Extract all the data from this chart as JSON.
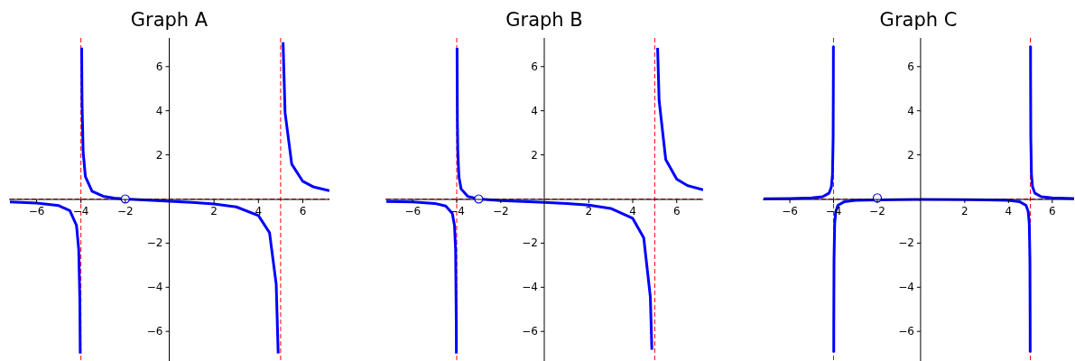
{
  "chart_data": [
    {
      "type": "line",
      "title": "Graph A",
      "xlim": [
        -7.2,
        7.2
      ],
      "ylim": [
        -7.3,
        7.3
      ],
      "xticks": [
        -6,
        -4,
        -2,
        2,
        4,
        6
      ],
      "yticks": [
        -6,
        -4,
        -2,
        2,
        4,
        6
      ],
      "ref_lines": [
        {
          "axis": "x",
          "value": -4,
          "color": "#ff0000",
          "line_style": "dashed"
        },
        {
          "axis": "x",
          "value": 5,
          "color": "#ff0000",
          "line_style": "dashed"
        },
        {
          "axis": "y",
          "value": 0,
          "color": "#ff0000",
          "line_style": "dashed"
        }
      ],
      "series": [
        {
          "x": [
            -7.2,
            -6,
            -5,
            -4.5,
            -4.2,
            -4.1,
            -4.05,
            -4.032,
            -4,
            -3.968,
            -3.95,
            -3.9,
            -3.8,
            -3.5,
            -3,
            -2.5,
            -2,
            -1,
            0,
            1,
            2,
            3,
            4,
            4.5,
            4.8,
            4.89,
            5,
            5.11,
            5.2,
            5.5,
            6,
            6.5,
            7.2
          ],
          "values": [
            -0.133,
            -0.182,
            -0.3,
            -0.526,
            -1.196,
            -2.28,
            -4.53,
            -7.0,
            null,
            6.86,
            4.36,
            2.13,
            1.02,
            0.353,
            0.125,
            0.044,
            0,
            -0.056,
            -0.1,
            -0.15,
            -0.222,
            -0.357,
            -0.75,
            -1.53,
            -3.86,
            -7.0,
            null,
            7.1,
            3.91,
            1.58,
            0.8,
            0.54,
            0.373
          ],
          "color": "#0000ff",
          "marker": "none"
        },
        {
          "type": "scatter",
          "x": [
            -2
          ],
          "values": [
            0
          ],
          "color": "#0000ff",
          "marker": "circle"
        }
      ]
    },
    {
      "type": "line",
      "title": "Graph B",
      "xlim": [
        -7.2,
        7.2
      ],
      "ylim": [
        -7.3,
        7.3
      ],
      "xticks": [
        -6,
        -4,
        -2,
        2,
        4,
        6
      ],
      "yticks": [
        -6,
        -4,
        -2,
        2,
        4,
        6
      ],
      "ref_lines": [
        {
          "axis": "x",
          "value": -4,
          "color": "#ff0000",
          "line_style": "dashed"
        },
        {
          "axis": "x",
          "value": 5,
          "color": "#ff0000",
          "line_style": "dashed"
        },
        {
          "axis": "y",
          "value": 0,
          "color": "#ff0000",
          "line_style": "dashed"
        }
      ],
      "series": [
        {
          "x": [
            -7.2,
            -6,
            -5,
            -4.5,
            -4.2,
            -4.1,
            -4.05,
            -4.02,
            -4.016,
            -4,
            -3.984,
            -3.97,
            -3.95,
            -3.9,
            -3.8,
            -3.5,
            -3,
            -2,
            -1,
            0,
            1,
            2,
            3,
            4,
            4.5,
            4.8,
            4.87,
            5,
            5.13,
            5.2,
            5.5,
            6,
            6.5,
            7.2
          ],
          "values": [
            -0.108,
            -0.136,
            -0.2,
            -0.316,
            -0.652,
            -1.21,
            -2.32,
            -5.65,
            -7.0,
            null,
            6.85,
            3.6,
            2.12,
            1.01,
            0.455,
            0.118,
            0,
            -0.071,
            -0.111,
            -0.15,
            -0.2,
            -0.278,
            -0.429,
            -0.875,
            -1.76,
            -4.43,
            -6.83,
            null,
            6.85,
            4.46,
            1.79,
            0.9,
            0.603,
            0.414
          ],
          "color": "#0000ff",
          "marker": "none"
        },
        {
          "type": "scatter",
          "x": [
            -3
          ],
          "values": [
            0
          ],
          "color": "#0000ff",
          "marker": "circle"
        }
      ]
    },
    {
      "type": "line",
      "title": "Graph C",
      "xlim": [
        -7.2,
        7.0
      ],
      "ylim": [
        -7.3,
        7.3
      ],
      "xticks": [
        -6,
        -4,
        -2,
        2,
        4,
        6
      ],
      "yticks": [
        -6,
        -4,
        -2,
        2,
        4,
        6
      ],
      "ref_lines": [
        {
          "axis": "x",
          "value": -4,
          "color": "#ff0000",
          "line_style": "dashed"
        },
        {
          "axis": "x",
          "value": 5,
          "color": "#ff0000",
          "line_style": "dashed"
        },
        {
          "axis": "y",
          "value": 0,
          "color": "#ff0000",
          "line_style": "dashed"
        }
      ],
      "series": [
        {
          "x": [
            -7.2,
            -6,
            -5,
            -4.5,
            -4.2,
            -4.1,
            -4.05,
            -4.02,
            -4.01,
            -4.008,
            -4,
            -3.992,
            -3.99,
            -3.98,
            -3.95,
            -3.9,
            -3.8,
            -3.5,
            -3,
            -2,
            0,
            2,
            3,
            4,
            4.5,
            4.8,
            4.9,
            4.95,
            4.98,
            4.99,
            4.992,
            5,
            5.008,
            5.01,
            5.02,
            5.05,
            5.1,
            5.2,
            5.5,
            6,
            7.0
          ],
          "values": [
            0.013,
            0.023,
            0.05,
            0.105,
            0.272,
            0.549,
            1.105,
            2.77,
            5.55,
            6.94,
            null,
            -6.95,
            -5.56,
            -2.79,
            -1.12,
            -0.562,
            -0.284,
            -0.118,
            -0.063,
            -0.036,
            -0.025,
            -0.028,
            -0.036,
            -0.063,
            -0.118,
            -0.284,
            -0.562,
            -1.12,
            -2.78,
            -5.57,
            -6.95,
            null,
            6.94,
            5.54,
            2.77,
            1.105,
            0.549,
            0.272,
            0.105,
            0.05,
            0.023
          ],
          "color": "#0000ff",
          "marker": "none"
        },
        {
          "type": "scatter",
          "x": [
            -2
          ],
          "values": [
            0.05
          ],
          "color": "#0000ff",
          "marker": "circle"
        }
      ]
    }
  ]
}
